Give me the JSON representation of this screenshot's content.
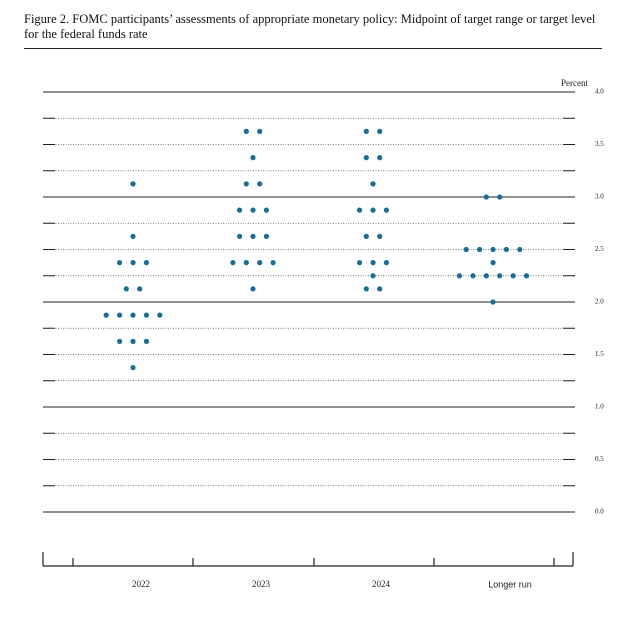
{
  "chart_data": {
    "type": "dot",
    "title": "Figure 2.  FOMC participants’ assessments of appropriate monetary policy: Midpoint of target range or target level for the federal funds rate",
    "y_label": "Percent",
    "categories": [
      "2022",
      "2023",
      "2024",
      "Longer run"
    ],
    "values": [
      [
        3.125,
        2.625,
        2.375,
        2.375,
        2.375,
        2.125,
        2.125,
        1.875,
        1.875,
        1.875,
        1.875,
        1.875,
        1.625,
        1.625,
        1.625,
        1.375
      ],
      [
        3.625,
        3.625,
        3.375,
        3.125,
        3.125,
        2.875,
        2.875,
        2.875,
        2.625,
        2.625,
        2.625,
        2.375,
        2.375,
        2.375,
        2.375,
        2.125
      ],
      [
        3.625,
        3.625,
        3.375,
        3.375,
        3.125,
        2.875,
        2.875,
        2.875,
        2.625,
        2.625,
        2.375,
        2.375,
        2.375,
        2.25,
        2.125,
        2.125
      ],
      [
        3.0,
        3.0,
        2.5,
        2.5,
        2.5,
        2.5,
        2.5,
        2.375,
        2.25,
        2.25,
        2.25,
        2.25,
        2.25,
        2.25,
        2.0
      ]
    ],
    "color": "#1a6e96",
    "ylim": [
      0,
      4
    ],
    "yticks": [
      {
        "value": 0,
        "label": "0.0"
      },
      0.5,
      {
        "value": 1,
        "label": "1.0"
      },
      1.5,
      {
        "value": 2,
        "label": "2.0"
      },
      2.5,
      {
        "value": 3,
        "label": "3.0"
      },
      3.5,
      {
        "value": 4,
        "label": "4.0"
      }
    ],
    "minor_yticks": [
      0.25,
      0.75,
      1.25,
      1.75,
      2.25,
      2.75,
      3.25,
      3.75
    ]
  }
}
